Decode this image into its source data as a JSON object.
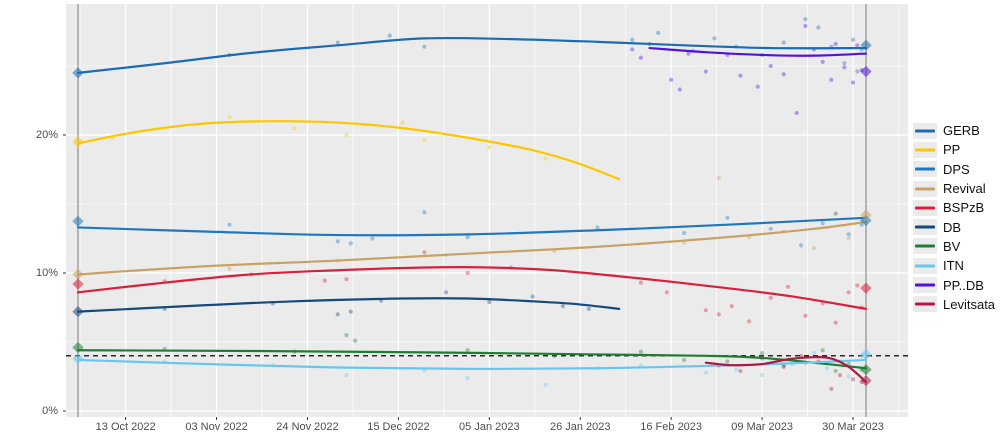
{
  "chart_data": {
    "type": "line",
    "title": "",
    "description": "Opinion poll trend chart for Bulgarian parties between the 02 Oct 2022 and 02 Apr 2023 elections: smoothed trend lines, translucent poll scatter points, diamond election-result markers, dashed 4% threshold line, vertical lines on election days.",
    "x_axis": {
      "tick_labels": [
        "13 Oct 2022",
        "03 Nov 2022",
        "24 Nov 2022",
        "15 Dec 2022",
        "05 Jan 2023",
        "26 Jan 2023",
        "16 Feb 2023",
        "09 Mar 2023",
        "30 Mar 2023"
      ],
      "tick_days": [
        11,
        32,
        53,
        74,
        95,
        116,
        137,
        158,
        179
      ],
      "day_range": [
        -3,
        192
      ],
      "grid": true
    },
    "y_axis": {
      "tick_labels": [
        "0%",
        "10%",
        "20%"
      ],
      "tick_values": [
        0,
        10,
        20
      ],
      "minor_values": [
        5,
        15,
        25
      ],
      "range": [
        -0.8,
        29.6
      ],
      "grid": true
    },
    "threshold_line": {
      "value": 4,
      "style": "dashed",
      "color": "#2b2b2b"
    },
    "event_day_lines": {
      "days": [
        0,
        182
      ],
      "color": "#878787"
    },
    "panel_bg": "#ebebeb",
    "grid_major_color": "#ffffff",
    "legend_position": "right",
    "series": [
      {
        "name": "GERB",
        "color": "#1b6cb0",
        "line": [
          [
            0,
            24.5
          ],
          [
            20,
            25.2
          ],
          [
            40,
            25.95
          ],
          [
            60,
            26.5
          ],
          [
            80,
            27.0
          ],
          [
            100,
            26.95
          ],
          [
            120,
            26.75
          ],
          [
            140,
            26.5
          ],
          [
            160,
            26.3
          ],
          [
            182,
            26.3
          ]
        ],
        "points": [
          [
            35,
            25.8
          ],
          [
            60,
            26.7
          ],
          [
            72,
            27.2
          ],
          [
            80,
            26.4
          ],
          [
            128,
            26.9
          ],
          [
            134,
            27.4
          ],
          [
            142,
            26.1
          ],
          [
            147,
            27.0
          ],
          [
            152,
            26.4
          ],
          [
            158,
            25.8
          ],
          [
            163,
            26.7
          ],
          [
            168,
            28.4
          ],
          [
            171,
            27.8
          ],
          [
            174,
            26.4
          ],
          [
            177,
            25.2
          ],
          [
            179,
            26.9
          ],
          [
            180,
            24.6
          ],
          [
            181,
            26.2
          ]
        ],
        "result_markers": [
          {
            "day": 0,
            "value": 24.5
          },
          {
            "day": 182,
            "value": 26.5
          }
        ]
      },
      {
        "name": "PP",
        "color": "#fdc700",
        "line": [
          [
            0,
            19.4
          ],
          [
            15,
            20.3
          ],
          [
            30,
            20.85
          ],
          [
            45,
            21.0
          ],
          [
            60,
            20.9
          ],
          [
            75,
            20.5
          ],
          [
            90,
            19.8
          ],
          [
            105,
            18.9
          ],
          [
            115,
            18.0
          ],
          [
            125,
            16.8
          ]
        ],
        "points": [
          [
            8,
            19.8
          ],
          [
            35,
            21.3
          ],
          [
            50,
            20.5
          ],
          [
            62,
            20.0
          ],
          [
            75,
            20.9
          ],
          [
            80,
            19.6
          ],
          [
            95,
            19.1
          ],
          [
            108,
            18.3
          ]
        ],
        "result_markers": [
          {
            "day": 0,
            "value": 19.5
          }
        ]
      },
      {
        "name": "DPS",
        "color": "#1e78c0",
        "line": [
          [
            0,
            13.3
          ],
          [
            30,
            13.0
          ],
          [
            60,
            12.75
          ],
          [
            90,
            12.8
          ],
          [
            120,
            13.1
          ],
          [
            150,
            13.5
          ],
          [
            182,
            14.0
          ]
        ],
        "points": [
          [
            35,
            13.5
          ],
          [
            60,
            12.3
          ],
          [
            63,
            12.15
          ],
          [
            68,
            12.5
          ],
          [
            80,
            14.4
          ],
          [
            90,
            12.6
          ],
          [
            120,
            13.3
          ],
          [
            140,
            12.9
          ],
          [
            150,
            14.0
          ],
          [
            160,
            13.2
          ],
          [
            167,
            12.0
          ],
          [
            172,
            13.6
          ],
          [
            175,
            14.3
          ],
          [
            178,
            12.8
          ],
          [
            181,
            13.5
          ]
        ],
        "result_markers": [
          {
            "day": 0,
            "value": 13.75
          },
          {
            "day": 182,
            "value": 13.8
          }
        ]
      },
      {
        "name": "Revival",
        "color": "#c8a264",
        "line": [
          [
            0,
            9.9
          ],
          [
            30,
            10.5
          ],
          [
            60,
            10.9
          ],
          [
            90,
            11.4
          ],
          [
            120,
            11.9
          ],
          [
            150,
            12.6
          ],
          [
            170,
            13.2
          ],
          [
            182,
            13.7
          ]
        ],
        "points": [
          [
            35,
            10.3
          ],
          [
            60,
            10.9
          ],
          [
            85,
            11.3
          ],
          [
            110,
            11.6
          ],
          [
            140,
            12.2
          ],
          [
            148,
            16.9
          ],
          [
            155,
            12.6
          ],
          [
            163,
            13.0
          ],
          [
            170,
            11.8
          ],
          [
            175,
            14.3
          ],
          [
            178,
            12.5
          ],
          [
            181,
            13.8
          ]
        ],
        "result_markers": [
          {
            "day": 0,
            "value": 9.9
          },
          {
            "day": 182,
            "value": 14.2
          }
        ]
      },
      {
        "name": "BSPzB",
        "color": "#d91f3d",
        "line": [
          [
            0,
            8.6
          ],
          [
            20,
            9.3
          ],
          [
            40,
            9.9
          ],
          [
            60,
            10.2
          ],
          [
            80,
            10.4
          ],
          [
            95,
            10.4
          ],
          [
            110,
            10.2
          ],
          [
            130,
            9.6
          ],
          [
            150,
            8.9
          ],
          [
            165,
            8.3
          ],
          [
            182,
            7.4
          ]
        ],
        "points": [
          [
            20,
            9.4
          ],
          [
            40,
            9.9
          ],
          [
            57,
            9.45
          ],
          [
            62,
            9.55
          ],
          [
            80,
            11.5
          ],
          [
            90,
            10.0
          ],
          [
            100,
            10.4
          ],
          [
            130,
            9.3
          ],
          [
            136,
            8.6
          ],
          [
            145,
            7.3
          ],
          [
            148,
            7.0
          ],
          [
            151,
            7.6
          ],
          [
            155,
            6.5
          ],
          [
            160,
            8.2
          ],
          [
            164,
            9.0
          ],
          [
            168,
            6.9
          ],
          [
            172,
            7.8
          ],
          [
            175,
            6.4
          ],
          [
            178,
            8.6
          ],
          [
            180,
            9.1
          ],
          [
            181,
            7.5
          ]
        ],
        "result_markers": [
          {
            "day": 0,
            "value": 9.2
          },
          {
            "day": 182,
            "value": 8.9
          }
        ]
      },
      {
        "name": "DB",
        "color": "#164a7e",
        "line": [
          [
            0,
            7.2
          ],
          [
            25,
            7.6
          ],
          [
            50,
            7.95
          ],
          [
            75,
            8.15
          ],
          [
            90,
            8.15
          ],
          [
            105,
            7.95
          ],
          [
            115,
            7.75
          ],
          [
            125,
            7.4
          ]
        ],
        "points": [
          [
            20,
            7.4
          ],
          [
            45,
            7.8
          ],
          [
            60,
            7.0
          ],
          [
            63,
            7.2
          ],
          [
            70,
            8.0
          ],
          [
            85,
            8.6
          ],
          [
            95,
            7.9
          ],
          [
            105,
            8.3
          ],
          [
            112,
            7.6
          ],
          [
            118,
            7.4
          ]
        ],
        "result_markers": [
          {
            "day": 0,
            "value": 7.2
          }
        ]
      },
      {
        "name": "BV",
        "color": "#1e7d32",
        "line": [
          [
            0,
            4.4
          ],
          [
            40,
            4.35
          ],
          [
            80,
            4.25
          ],
          [
            120,
            4.1
          ],
          [
            145,
            4.0
          ],
          [
            160,
            3.8
          ],
          [
            182,
            3.1
          ]
        ],
        "points": [
          [
            20,
            4.5
          ],
          [
            50,
            4.3
          ],
          [
            62,
            5.5
          ],
          [
            64,
            5.1
          ],
          [
            90,
            4.4
          ],
          [
            110,
            4.0
          ],
          [
            130,
            4.3
          ],
          [
            140,
            3.7
          ],
          [
            150,
            3.6
          ],
          [
            158,
            4.2
          ],
          [
            163,
            3.3
          ],
          [
            168,
            3.5
          ],
          [
            172,
            4.4
          ],
          [
            175,
            2.9
          ],
          [
            178,
            3.4
          ],
          [
            181,
            3.0
          ]
        ],
        "result_markers": [
          {
            "day": 0,
            "value": 4.6
          },
          {
            "day": 182,
            "value": 3.0
          }
        ]
      },
      {
        "name": "ITN",
        "color": "#66c7ee",
        "line": [
          [
            0,
            3.7
          ],
          [
            30,
            3.4
          ],
          [
            60,
            3.15
          ],
          [
            90,
            3.05
          ],
          [
            120,
            3.1
          ],
          [
            150,
            3.3
          ],
          [
            168,
            3.5
          ],
          [
            182,
            3.7
          ]
        ],
        "points": [
          [
            20,
            3.6
          ],
          [
            45,
            3.3
          ],
          [
            62,
            2.6
          ],
          [
            80,
            2.95
          ],
          [
            90,
            2.4
          ],
          [
            108,
            1.9
          ],
          [
            120,
            3.1
          ],
          [
            130,
            3.3
          ],
          [
            145,
            2.8
          ],
          [
            152,
            3.0
          ],
          [
            158,
            2.6
          ],
          [
            165,
            3.4
          ],
          [
            170,
            4.2
          ],
          [
            173,
            3.1
          ],
          [
            176,
            3.6
          ],
          [
            178,
            2.5
          ],
          [
            181,
            4.0
          ]
        ],
        "result_markers": [
          {
            "day": 0,
            "value": 3.8
          },
          {
            "day": 182,
            "value": 4.1
          }
        ]
      },
      {
        "name": "PP..DB",
        "color": "#5012df",
        "line": [
          [
            132,
            26.3
          ],
          [
            145,
            26.0
          ],
          [
            158,
            25.8
          ],
          [
            170,
            25.75
          ],
          [
            182,
            25.9
          ]
        ],
        "points": [
          [
            128,
            26.2
          ],
          [
            130,
            25.6
          ],
          [
            132,
            26.6
          ],
          [
            137,
            24.0
          ],
          [
            139,
            23.3
          ],
          [
            141,
            25.9
          ],
          [
            145,
            24.6
          ],
          [
            150,
            25.8
          ],
          [
            153,
            24.3
          ],
          [
            157,
            23.5
          ],
          [
            160,
            25.0
          ],
          [
            163,
            24.4
          ],
          [
            166,
            21.6
          ],
          [
            168,
            27.9
          ],
          [
            170,
            26.2
          ],
          [
            172,
            25.3
          ],
          [
            174,
            24.0
          ],
          [
            175,
            26.6
          ],
          [
            177,
            24.9
          ],
          [
            179,
            23.8
          ],
          [
            180,
            26.5
          ],
          [
            181,
            24.7
          ]
        ],
        "result_markers": [
          {
            "day": 182,
            "value": 24.6
          }
        ]
      },
      {
        "name": "Levitsata",
        "color": "#b01945",
        "line": [
          [
            145,
            3.5
          ],
          [
            151,
            3.32
          ],
          [
            158,
            3.4
          ],
          [
            164,
            3.75
          ],
          [
            170,
            3.9
          ],
          [
            174,
            3.8
          ],
          [
            178,
            3.2
          ],
          [
            182,
            2.1
          ]
        ],
        "points": [
          [
            148,
            3.3
          ],
          [
            153,
            2.9
          ],
          [
            158,
            3.8
          ],
          [
            163,
            3.2
          ],
          [
            167,
            4.0
          ],
          [
            171,
            3.6
          ],
          [
            174,
            1.6
          ],
          [
            176,
            2.6
          ],
          [
            179,
            2.3
          ],
          [
            181,
            2.1
          ]
        ],
        "result_markers": [
          {
            "day": 182,
            "value": 2.2
          }
        ]
      }
    ]
  }
}
